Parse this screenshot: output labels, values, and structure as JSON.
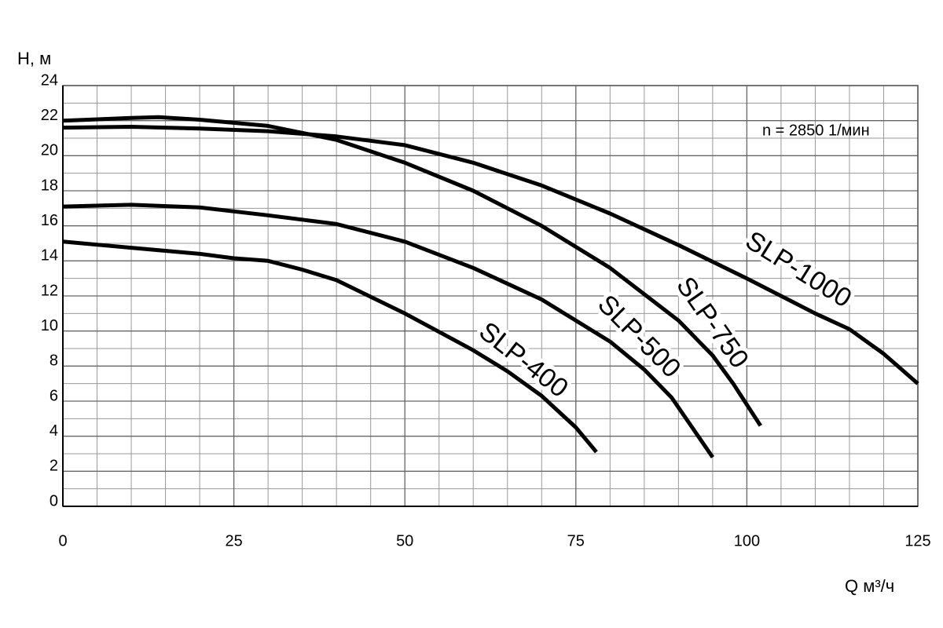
{
  "chart_data": {
    "type": "line",
    "annotation": "n = 2850 1/мин",
    "y_label": "H, м",
    "x_label": "Q м³/ч",
    "xlim": [
      0,
      125
    ],
    "ylim": [
      0,
      24
    ],
    "xticks": [
      0,
      25,
      50,
      75,
      100,
      125
    ],
    "yticks": [
      0,
      2,
      4,
      6,
      8,
      10,
      12,
      14,
      16,
      18,
      20,
      22,
      24
    ],
    "x_minor_grid": [
      5,
      10,
      15,
      20,
      30,
      35,
      40,
      45,
      55,
      60,
      65,
      70,
      80,
      85,
      90,
      95,
      105,
      110,
      115,
      120
    ],
    "y_minor_grid": [
      1,
      3,
      5,
      7,
      9,
      11,
      13,
      15,
      17,
      19,
      21,
      23
    ],
    "grid": true,
    "color": "#000000",
    "series": [
      {
        "name": "SLP-1000",
        "x": [
          0,
          10,
          20,
          30,
          40,
          50,
          60,
          70,
          80,
          90,
          100,
          110,
          115,
          120,
          125
        ],
        "values": [
          21.6,
          21.65,
          21.55,
          21.4,
          21.1,
          20.6,
          19.6,
          18.3,
          16.7,
          14.9,
          13,
          11,
          10.1,
          8.7,
          7
        ]
      },
      {
        "name": "SLP-750",
        "x": [
          0,
          10,
          14,
          20,
          30,
          40,
          50,
          60,
          70,
          80,
          90,
          95,
          98,
          102
        ],
        "values": [
          22,
          22.15,
          22.2,
          22.05,
          21.7,
          20.9,
          19.6,
          18,
          16,
          13.6,
          10.6,
          8.6,
          7,
          4.6
        ]
      },
      {
        "name": "SLP-500",
        "x": [
          0,
          10,
          20,
          30,
          40,
          50,
          60,
          70,
          80,
          85,
          89,
          92,
          95
        ],
        "values": [
          17.1,
          17.2,
          17.05,
          16.6,
          16.1,
          15.1,
          13.6,
          11.8,
          9.4,
          7.8,
          6.2,
          4.5,
          2.8
        ]
      },
      {
        "name": "SLP-400",
        "x": [
          0,
          10,
          20,
          25,
          30,
          35,
          40,
          50,
          60,
          65,
          70,
          75,
          78
        ],
        "values": [
          15.1,
          14.75,
          14.4,
          14.15,
          14.0,
          13.5,
          12.9,
          11.0,
          8.9,
          7.7,
          6.3,
          4.5,
          3.1
        ]
      }
    ]
  }
}
